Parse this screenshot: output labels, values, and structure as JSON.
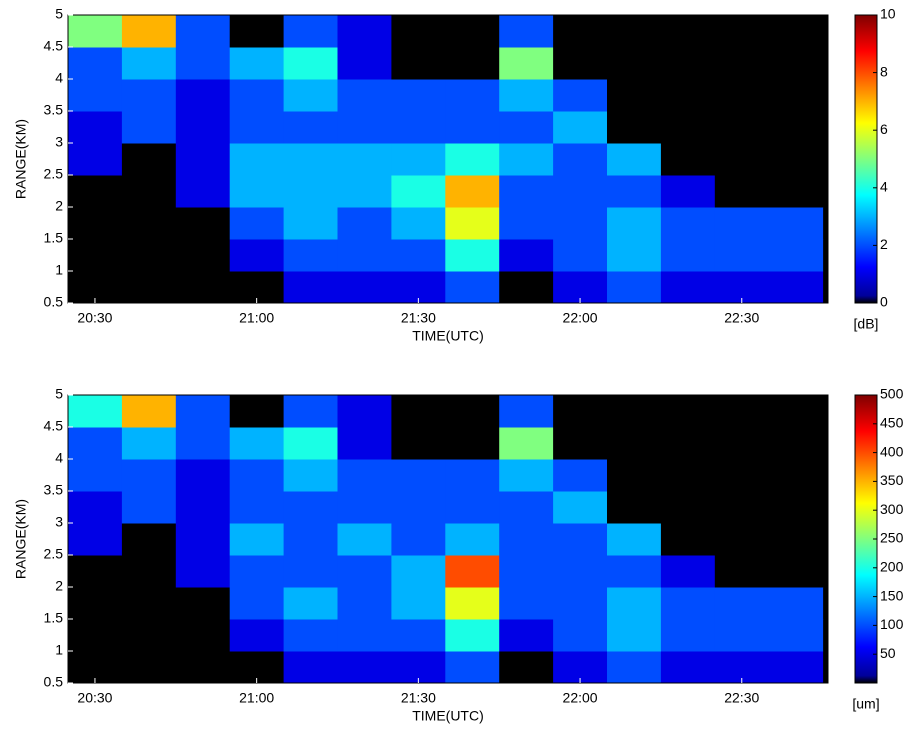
{
  "chart_data": [
    {
      "type": "heatmap",
      "xlabel": "TIME(UTC)",
      "ylabel": "RANGE(KM)",
      "xlim": [
        1225,
        1366
      ],
      "ylim": [
        0.5,
        5
      ],
      "xticks": [
        {
          "value": 1230,
          "label": "20:30"
        },
        {
          "value": 1260,
          "label": "21:00"
        },
        {
          "value": 1290,
          "label": "21:30"
        },
        {
          "value": 1320,
          "label": "22:00"
        },
        {
          "value": 1350,
          "label": "22:30"
        }
      ],
      "yticks": [
        0.5,
        1,
        1.5,
        2,
        2.5,
        3,
        3.5,
        4,
        4.5,
        5
      ],
      "x": [
        1230,
        1240,
        1250,
        1260,
        1270,
        1280,
        1290,
        1300,
        1310,
        1320,
        1330,
        1340,
        1350,
        1360
      ],
      "y": [
        0.75,
        1.25,
        1.75,
        2.25,
        2.75,
        3.25,
        3.75,
        4.25,
        4.75
      ],
      "z": [
        [
          0,
          0,
          0,
          0,
          1,
          1,
          1,
          2,
          0,
          1,
          2,
          1,
          1,
          1
        ],
        [
          0,
          0,
          0,
          1,
          2,
          2,
          2,
          4,
          1,
          2,
          3,
          2,
          2,
          2
        ],
        [
          0,
          0,
          0,
          2,
          3,
          2,
          3,
          6,
          2,
          2,
          3,
          2,
          2,
          2
        ],
        [
          0,
          0,
          1,
          3,
          3,
          3,
          4,
          7,
          2,
          2,
          2,
          1,
          0,
          0
        ],
        [
          1,
          0,
          1,
          3,
          3,
          3,
          3,
          4,
          3,
          2,
          3,
          0,
          0,
          0
        ],
        [
          1,
          2,
          1,
          2,
          2,
          2,
          2,
          2,
          2,
          3,
          0,
          0,
          0,
          0
        ],
        [
          2,
          2,
          1,
          2,
          3,
          2,
          2,
          2,
          3,
          2,
          0,
          0,
          0,
          0
        ],
        [
          2,
          3,
          2,
          3,
          4,
          1,
          0,
          0,
          5,
          0,
          0,
          0,
          0,
          0
        ],
        [
          5,
          7,
          2,
          0,
          2,
          1,
          0,
          0,
          2,
          0,
          0,
          0,
          0,
          0
        ]
      ],
      "colorbar": {
        "lim": [
          0,
          10
        ],
        "ticks": [
          0,
          2,
          4,
          6,
          8,
          10
        ],
        "label": "[dB]"
      }
    },
    {
      "type": "heatmap",
      "xlabel": "TIME(UTC)",
      "ylabel": "RANGE(KM)",
      "xlim": [
        1225,
        1366
      ],
      "ylim": [
        0.5,
        5
      ],
      "xticks": [
        {
          "value": 1230,
          "label": "20:30"
        },
        {
          "value": 1260,
          "label": "21:00"
        },
        {
          "value": 1290,
          "label": "21:30"
        },
        {
          "value": 1320,
          "label": "22:00"
        },
        {
          "value": 1350,
          "label": "22:30"
        }
      ],
      "yticks": [
        0.5,
        1,
        1.5,
        2,
        2.5,
        3,
        3.5,
        4,
        4.5,
        5
      ],
      "x": [
        1230,
        1240,
        1250,
        1260,
        1270,
        1280,
        1290,
        1300,
        1310,
        1320,
        1330,
        1340,
        1350,
        1360
      ],
      "y": [
        0.75,
        1.25,
        1.75,
        2.25,
        2.75,
        3.25,
        3.75,
        4.25,
        4.75
      ],
      "z": [
        [
          0,
          0,
          0,
          0,
          50,
          50,
          50,
          100,
          0,
          50,
          100,
          50,
          50,
          50
        ],
        [
          0,
          0,
          0,
          50,
          100,
          100,
          100,
          200,
          50,
          100,
          150,
          100,
          100,
          100
        ],
        [
          0,
          0,
          0,
          100,
          150,
          100,
          150,
          300,
          100,
          100,
          150,
          100,
          100,
          100
        ],
        [
          0,
          0,
          50,
          100,
          100,
          100,
          150,
          400,
          100,
          100,
          100,
          50,
          0,
          0
        ],
        [
          50,
          0,
          50,
          150,
          100,
          150,
          100,
          150,
          100,
          100,
          150,
          0,
          0,
          0
        ],
        [
          50,
          100,
          50,
          100,
          100,
          100,
          100,
          100,
          100,
          150,
          0,
          0,
          0,
          0
        ],
        [
          100,
          100,
          50,
          100,
          150,
          100,
          100,
          100,
          150,
          100,
          0,
          0,
          0,
          0
        ],
        [
          100,
          150,
          100,
          150,
          200,
          50,
          0,
          0,
          250,
          0,
          0,
          0,
          0,
          0
        ],
        [
          200,
          350,
          100,
          0,
          100,
          50,
          0,
          0,
          100,
          0,
          0,
          0,
          0,
          0
        ]
      ],
      "colorbar": {
        "lim": [
          0,
          500
        ],
        "ticks": [
          50,
          100,
          150,
          200,
          250,
          300,
          350,
          400,
          450,
          500
        ],
        "label": "[um]"
      }
    }
  ]
}
